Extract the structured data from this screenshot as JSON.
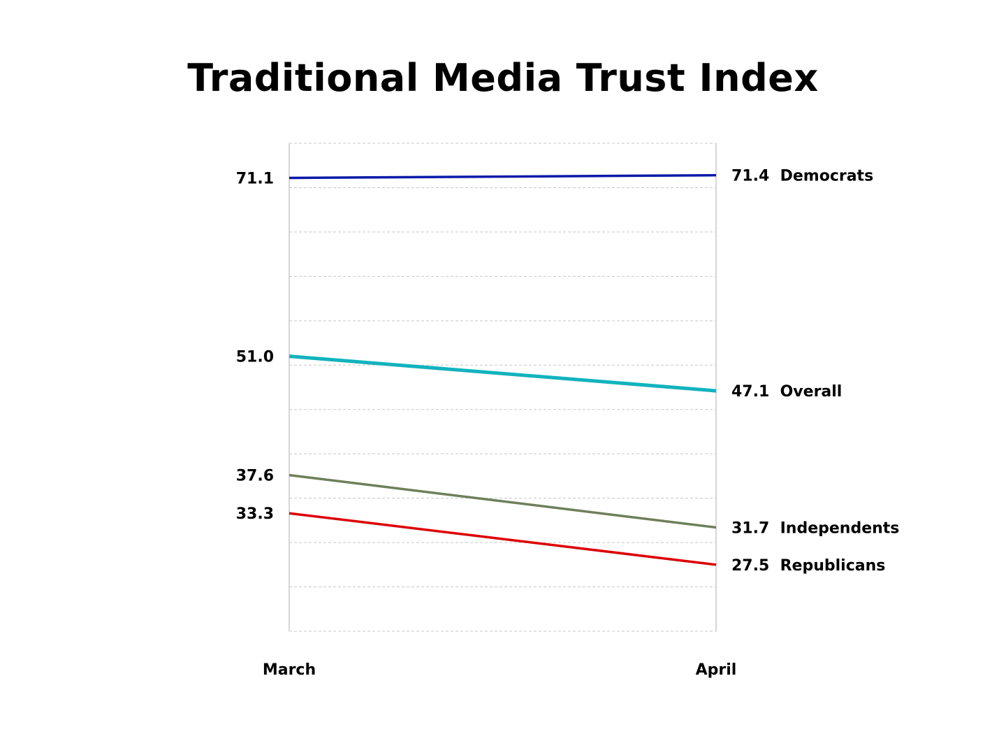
{
  "chart_data": {
    "type": "line",
    "title": "Traditional Media Trust Index",
    "xlabel": "",
    "ylabel": "",
    "categories": [
      "March",
      "April"
    ],
    "ylim": [
      20,
      75
    ],
    "grid": true,
    "series": [
      {
        "name": "Democrats",
        "values": [
          71.1,
          71.4
        ],
        "labels": [
          "71.1",
          "71.4"
        ],
        "color": "#0a1aa8"
      },
      {
        "name": "Overall",
        "values": [
          51.0,
          47.1
        ],
        "labels": [
          "51.0",
          "47.1"
        ],
        "color": "#12b3bd"
      },
      {
        "name": "Independents",
        "values": [
          37.6,
          31.7
        ],
        "labels": [
          "37.6",
          "31.7"
        ],
        "color": "#6e7f5a"
      },
      {
        "name": "Republicans",
        "values": [
          33.3,
          27.5
        ],
        "labels": [
          "33.3",
          "27.5"
        ],
        "color": "#dd0000"
      }
    ]
  }
}
